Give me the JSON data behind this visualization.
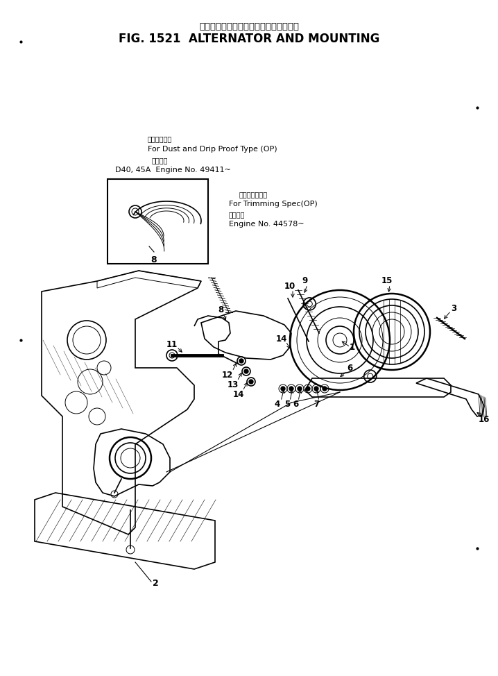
{
  "title_jp": "オルタネータ　および　マウンティング",
  "title_en": "FIG. 1521  ALTERNATOR AND MOUNTING",
  "bg_color": "#ffffff",
  "label_dust_jp": "防塵防滴型用",
  "label_dust_en": "For Dust and Drip Proof Type (OP)",
  "label_dust_app_jp": "適用号機",
  "label_dust_app_en": "D40, 45A  Engine No. 49411~",
  "label_trim_jp": "トリミング仕様",
  "label_trim_en": "For Trimming Spec(OP)",
  "label_trim_app_jp": "適用号機",
  "label_trim_app_en": "Engine No. 44578~",
  "fig_width": 7.18,
  "fig_height": 9.74,
  "dpi": 100
}
